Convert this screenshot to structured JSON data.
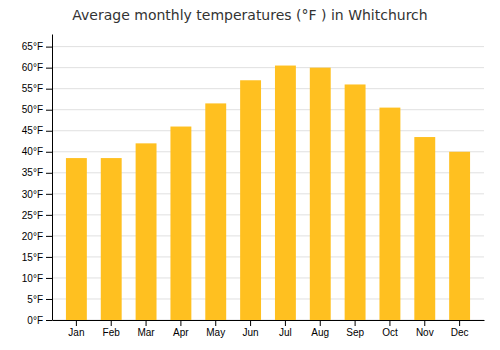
{
  "chart_data": {
    "type": "bar",
    "title": "Average monthly temperatures (°F ) in Whitchurch",
    "categories": [
      "Jan",
      "Feb",
      "Mar",
      "Apr",
      "May",
      "Jun",
      "Jul",
      "Aug",
      "Sep",
      "Oct",
      "Nov",
      "Dec"
    ],
    "values": [
      38.5,
      38.5,
      42.0,
      46.0,
      51.5,
      57.0,
      60.5,
      60.0,
      56.0,
      50.5,
      43.5,
      40.0
    ],
    "color": "#FFC020",
    "ylim": [
      0,
      68
    ],
    "yticks": [
      {
        "value": 0,
        "label": "0°F"
      },
      {
        "value": 5,
        "label": "5°F"
      },
      {
        "value": 10,
        "label": "10°F"
      },
      {
        "value": 15,
        "label": "15°F"
      },
      {
        "value": 20,
        "label": "20°F"
      },
      {
        "value": 25,
        "label": "25°F"
      },
      {
        "value": 30,
        "label": "30°F"
      },
      {
        "value": 35,
        "label": "35°F"
      },
      {
        "value": 40,
        "label": "40°F"
      },
      {
        "value": 45,
        "label": "45°F"
      },
      {
        "value": 50,
        "label": "50°F"
      },
      {
        "value": 55,
        "label": "55°F"
      },
      {
        "value": 60,
        "label": "60°F"
      },
      {
        "value": 65,
        "label": "65°F"
      }
    ],
    "grid": true
  }
}
